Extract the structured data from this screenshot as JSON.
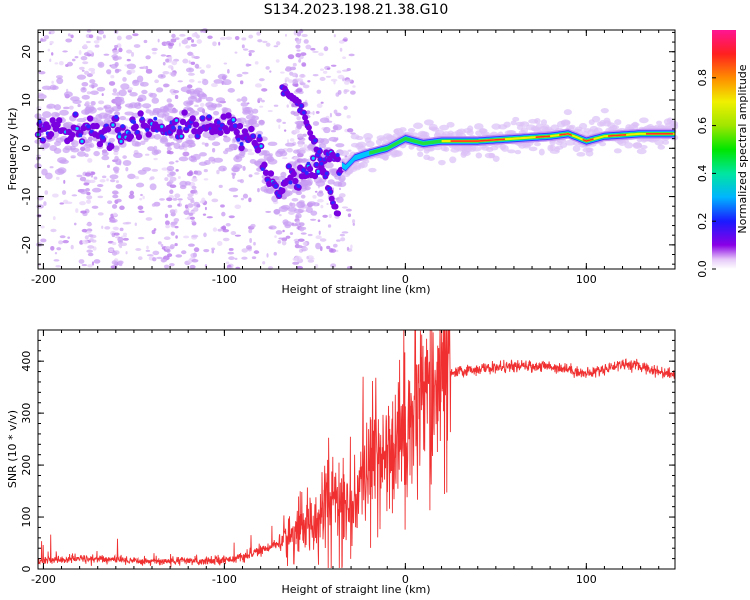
{
  "title": "S134.2023.198.21.38.G10",
  "chart_data": [
    {
      "type": "heatmap",
      "name": "spectrogram",
      "xlabel": "Height of straight line (km)",
      "ylabel": "Frequency (Hz)",
      "xlim": [
        -203,
        149
      ],
      "ylim": [
        -25,
        24.5
      ],
      "xticks": [
        "-200",
        "-100",
        "0",
        "100"
      ],
      "xtick_values": [
        -200,
        -100,
        0,
        100
      ],
      "yticks": [
        "20",
        "10",
        "0",
        "-10",
        "-20"
      ],
      "ytick_values": [
        20,
        10,
        0,
        -10,
        -20
      ],
      "colorbar": {
        "label": "Normalized spectral amplitude",
        "range": [
          0,
          1
        ],
        "ticks": [
          "0.0",
          "0.2",
          "0.4",
          "0.6",
          "0.8"
        ],
        "tick_values": [
          0.0,
          0.2,
          0.4,
          0.6,
          0.8
        ]
      },
      "ridge": [
        {
          "x": -200,
          "y": 3
        },
        {
          "x": -190,
          "y": 3.5
        },
        {
          "x": -180,
          "y": 4
        },
        {
          "x": -170,
          "y": 3
        },
        {
          "x": -160,
          "y": 3
        },
        {
          "x": -150,
          "y": 4
        },
        {
          "x": -140,
          "y": 5
        },
        {
          "x": -130,
          "y": 4
        },
        {
          "x": -120,
          "y": 5
        },
        {
          "x": -110,
          "y": 5
        },
        {
          "x": -100,
          "y": 5
        },
        {
          "x": -90,
          "y": 4
        },
        {
          "x": -83,
          "y": 2
        },
        {
          "x": -78,
          "y": -3
        },
        {
          "x": -73,
          "y": -8
        },
        {
          "x": -68,
          "y": -7
        },
        {
          "x": -60,
          "y": -6
        },
        {
          "x": -50,
          "y": -4
        },
        {
          "x": -42,
          "y": -1
        },
        {
          "x": -37,
          "y": -3
        },
        {
          "x": -33,
          "y": -4
        },
        {
          "x": -28,
          "y": -2
        },
        {
          "x": -20,
          "y": -1
        },
        {
          "x": -10,
          "y": 0
        },
        {
          "x": 0,
          "y": 2
        },
        {
          "x": 10,
          "y": 1
        },
        {
          "x": 20,
          "y": 1.5
        },
        {
          "x": 40,
          "y": 1.5
        },
        {
          "x": 60,
          "y": 2
        },
        {
          "x": 80,
          "y": 2.5
        },
        {
          "x": 90,
          "y": 3
        },
        {
          "x": 100,
          "y": 1.5
        },
        {
          "x": 110,
          "y": 2.5
        },
        {
          "x": 130,
          "y": 3
        },
        {
          "x": 149,
          "y": 3
        }
      ],
      "secondary_ridge": [
        {
          "x": -68,
          "y": 12
        },
        {
          "x": -60,
          "y": 10
        },
        {
          "x": -55,
          "y": 6
        },
        {
          "x": -50,
          "y": 1
        },
        {
          "x": -45,
          "y": -5
        },
        {
          "x": -40,
          "y": -11
        },
        {
          "x": -37,
          "y": -15
        }
      ]
    },
    {
      "type": "line",
      "name": "snr",
      "xlabel": "Height of straight line (km)",
      "ylabel": "SNR (10 * v/v)",
      "xlim": [
        -203,
        149
      ],
      "ylim": [
        0,
        460
      ],
      "xticks": [
        "-200",
        "-100",
        "0",
        "100"
      ],
      "xtick_values": [
        -200,
        -100,
        0,
        100
      ],
      "yticks": [
        "0",
        "100",
        "200",
        "300",
        "400"
      ],
      "ytick_values": [
        0,
        100,
        200,
        300,
        400
      ],
      "color": "#f03030",
      "series": [
        {
          "name": "SNR",
          "x": [
            -203,
            -180,
            -160,
            -140,
            -120,
            -100,
            -90,
            -80,
            -70,
            -60,
            -50,
            -45,
            -40,
            -35,
            -30,
            -25,
            -20,
            -15,
            -10,
            -5,
            0,
            5,
            10,
            15,
            20,
            25,
            30,
            40,
            60,
            80,
            90,
            100,
            110,
            120,
            130,
            140,
            149
          ],
          "values": [
            15,
            20,
            18,
            15,
            15,
            18,
            22,
            35,
            50,
            70,
            100,
            120,
            140,
            130,
            110,
            140,
            200,
            230,
            240,
            250,
            270,
            290,
            310,
            330,
            360,
            375,
            380,
            385,
            390,
            390,
            385,
            375,
            385,
            395,
            390,
            380,
            375
          ]
        }
      ]
    }
  ]
}
